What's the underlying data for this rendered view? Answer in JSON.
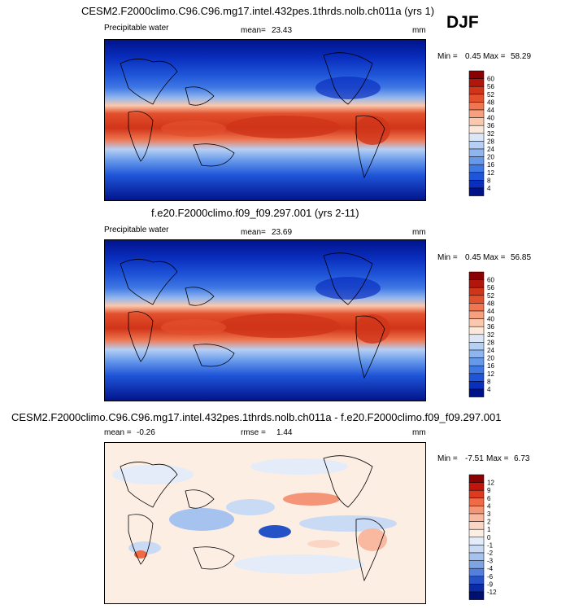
{
  "season": "DJF",
  "chart_data": [
    {
      "type": "heatmap",
      "title": "CESM2.F2000climo.C96.C96.mg17.intel.432pes.1thrds.nolb.ch011a (yrs 1)",
      "variable": "Precipitable water",
      "mean_label": "mean=",
      "mean": "23.43",
      "units": "mm",
      "min_label": "Min =",
      "min": "0.45",
      "max_label": "Max =",
      "max": "58.29",
      "colorbar": {
        "levels": [
          "60",
          "56",
          "52",
          "48",
          "44",
          "40",
          "36",
          "32",
          "28",
          "24",
          "20",
          "16",
          "12",
          "8",
          "4"
        ],
        "colors": [
          "#8b0000",
          "#b0160c",
          "#d03419",
          "#e2502c",
          "#ef7650",
          "#f6a07f",
          "#fac8ad",
          "#fbe8da",
          "#dbe6f7",
          "#b6cff4",
          "#8fb5ef",
          "#6799ea",
          "#4078e4",
          "#1f55d8",
          "#0a2fbf",
          "#00128a"
        ]
      }
    },
    {
      "type": "heatmap",
      "title": "f.e20.F2000climo.f09_f09.297.001 (yrs 2-11)",
      "variable": "Precipitable water",
      "mean_label": "mean=",
      "mean": "23.69",
      "units": "mm",
      "min_label": "Min =",
      "min": "0.45",
      "max_label": "Max =",
      "max": "56.85",
      "colorbar": {
        "levels": [
          "60",
          "56",
          "52",
          "48",
          "44",
          "40",
          "36",
          "32",
          "28",
          "24",
          "20",
          "16",
          "12",
          "8",
          "4"
        ],
        "colors": [
          "#8b0000",
          "#b0160c",
          "#d03419",
          "#e2502c",
          "#ef7650",
          "#f6a07f",
          "#fac8ad",
          "#fbe8da",
          "#dbe6f7",
          "#b6cff4",
          "#8fb5ef",
          "#6799ea",
          "#4078e4",
          "#1f55d8",
          "#0a2fbf",
          "#00128a"
        ]
      }
    },
    {
      "type": "heatmap",
      "title": "CESM2.F2000climo.C96.C96.mg17.intel.432pes.1thrds.nolb.ch011a - f.e20.F2000climo.f09_f09.297.001",
      "mean_label": "mean =",
      "mean": "-0.26",
      "rmse_label": "rmse =",
      "rmse": "1.44",
      "units": "mm",
      "min_label": "Min =",
      "min": "-7.51",
      "max_label": "Max =",
      "max": "6.73",
      "colorbar": {
        "levels": [
          "12",
          "9",
          "6",
          "4",
          "3",
          "2",
          "1",
          "0",
          "-1",
          "-2",
          "-3",
          "-4",
          "-6",
          "-9",
          "-12"
        ],
        "colors": [
          "#8b0000",
          "#c0150a",
          "#de3a20",
          "#ef6a45",
          "#f59577",
          "#f8b9a0",
          "#fbd6c4",
          "#fdeee4",
          "#e3ecf8",
          "#c8daf4",
          "#a6c2ee",
          "#7fa4e6",
          "#547fdc",
          "#2652c8",
          "#0a2aa6",
          "#00106e"
        ]
      }
    }
  ]
}
